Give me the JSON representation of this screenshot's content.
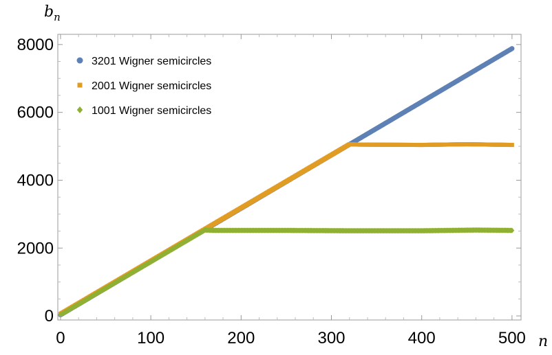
{
  "chart_data": {
    "type": "scatter",
    "xlabel": "n",
    "ylabel": "b_n",
    "ylabel_base": "b",
    "ylabel_sub": "n",
    "xlim": [
      -3,
      510
    ],
    "ylim": [
      -120,
      8300
    ],
    "xticks": [
      0,
      100,
      200,
      300,
      400,
      500
    ],
    "yticks": [
      0,
      2000,
      4000,
      6000,
      8000
    ],
    "xtick_labels": [
      "0",
      "100",
      "200",
      "300",
      "400",
      "500"
    ],
    "ytick_labels": [
      "0",
      "2000",
      "4000",
      "6000",
      "8000"
    ],
    "grid": false,
    "legend_position": "top-left",
    "series": [
      {
        "name": "3201 Wigner semicircles",
        "color": "#5E81B5",
        "marker": "circle",
        "points": [
          [
            0,
            30
          ],
          [
            500,
            7880
          ]
        ]
      },
      {
        "name": "2001 Wigner semicircles",
        "color": "#E19C24",
        "marker": "square",
        "points": [
          [
            0,
            60
          ],
          [
            320,
            5060
          ],
          [
            330,
            5050
          ],
          [
            400,
            5040
          ],
          [
            450,
            5060
          ],
          [
            500,
            5040
          ]
        ]
      },
      {
        "name": "1001 Wigner semicircles",
        "color": "#8FB032",
        "marker": "diamond",
        "points": [
          [
            0,
            30
          ],
          [
            160,
            2530
          ],
          [
            170,
            2520
          ],
          [
            250,
            2520
          ],
          [
            320,
            2510
          ],
          [
            400,
            2510
          ],
          [
            460,
            2530
          ],
          [
            500,
            2520
          ]
        ]
      }
    ]
  }
}
